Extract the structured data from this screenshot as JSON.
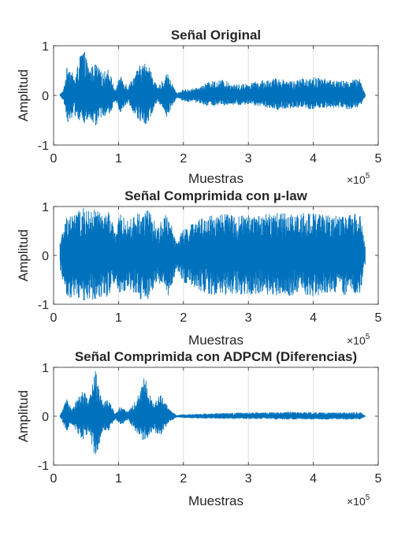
{
  "accent_color": "#0072bd",
  "chart_data": [
    {
      "type": "line",
      "title": "Señal Original",
      "xlabel": "Muestras",
      "ylabel": "Amplitud",
      "x_multiplier": "×10",
      "x_exponent": "5",
      "xlim": [
        0,
        5
      ],
      "ylim": [
        -1,
        1
      ],
      "xticks": [
        "0",
        "1",
        "2",
        "3",
        "4",
        "5"
      ],
      "yticks": [
        "-1",
        "0",
        "1"
      ],
      "grid": "vertical",
      "legend": "none",
      "series": [
        {
          "color": "#0072bd",
          "x_range": [
            0.1,
            4.8
          ],
          "envelope": [
            {
              "x": 0.1,
              "upper": 0.03,
              "lower": -0.03
            },
            {
              "x": 0.15,
              "upper": 0.1,
              "lower": -0.1
            },
            {
              "x": 0.22,
              "upper": 0.7,
              "lower": -0.55
            },
            {
              "x": 0.32,
              "upper": 0.35,
              "lower": -0.4
            },
            {
              "x": 0.45,
              "upper": 1.0,
              "lower": -0.6
            },
            {
              "x": 0.55,
              "upper": 0.55,
              "lower": -0.5
            },
            {
              "x": 0.65,
              "upper": 0.65,
              "lower": -0.65
            },
            {
              "x": 0.75,
              "upper": 0.45,
              "lower": -0.4
            },
            {
              "x": 0.85,
              "upper": 0.55,
              "lower": -0.45
            },
            {
              "x": 0.95,
              "upper": 0.1,
              "lower": -0.1
            },
            {
              "x": 1.02,
              "upper": 0.4,
              "lower": -0.35
            },
            {
              "x": 1.15,
              "upper": 0.2,
              "lower": -0.15
            },
            {
              "x": 1.32,
              "upper": 0.6,
              "lower": -0.55
            },
            {
              "x": 1.45,
              "upper": 0.7,
              "lower": -0.6
            },
            {
              "x": 1.6,
              "upper": 0.15,
              "lower": -0.1
            },
            {
              "x": 1.75,
              "upper": 0.45,
              "lower": -0.45
            },
            {
              "x": 1.9,
              "upper": 0.05,
              "lower": -0.05
            },
            {
              "x": 2.0,
              "upper": 0.12,
              "lower": -0.12
            },
            {
              "x": 2.2,
              "upper": 0.15,
              "lower": -0.15
            },
            {
              "x": 2.4,
              "upper": 0.28,
              "lower": -0.22
            },
            {
              "x": 2.6,
              "upper": 0.32,
              "lower": -0.22
            },
            {
              "x": 2.8,
              "upper": 0.22,
              "lower": -0.2
            },
            {
              "x": 3.0,
              "upper": 0.25,
              "lower": -0.2
            },
            {
              "x": 3.2,
              "upper": 0.3,
              "lower": -0.22
            },
            {
              "x": 3.45,
              "upper": 0.35,
              "lower": -0.3
            },
            {
              "x": 3.7,
              "upper": 0.3,
              "lower": -0.25
            },
            {
              "x": 3.95,
              "upper": 0.38,
              "lower": -0.3
            },
            {
              "x": 4.15,
              "upper": 0.35,
              "lower": -0.25
            },
            {
              "x": 4.35,
              "upper": 0.3,
              "lower": -0.25
            },
            {
              "x": 4.55,
              "upper": 0.3,
              "lower": -0.3
            },
            {
              "x": 4.72,
              "upper": 0.35,
              "lower": -0.25
            },
            {
              "x": 4.8,
              "upper": 0.02,
              "lower": -0.02
            }
          ]
        }
      ]
    },
    {
      "type": "line",
      "title": "Señal Comprimida con µ-law",
      "xlabel": "Muestras",
      "ylabel": "Amplitud",
      "x_multiplier": "×10",
      "x_exponent": "5",
      "xlim": [
        0,
        5
      ],
      "ylim": [
        -1,
        1
      ],
      "xticks": [
        "0",
        "1",
        "2",
        "3",
        "4",
        "5"
      ],
      "yticks": [
        "-1",
        "0",
        "1"
      ],
      "grid": "vertical",
      "legend": "none",
      "series": [
        {
          "color": "#0072bd",
          "x_range": [
            0.1,
            4.8
          ],
          "envelope": [
            {
              "x": 0.1,
              "upper": 0.3,
              "lower": -0.3
            },
            {
              "x": 0.15,
              "upper": 0.55,
              "lower": -0.55
            },
            {
              "x": 0.22,
              "upper": 0.92,
              "lower": -0.9
            },
            {
              "x": 0.32,
              "upper": 0.85,
              "lower": -0.85
            },
            {
              "x": 0.45,
              "upper": 0.98,
              "lower": -0.95
            },
            {
              "x": 0.55,
              "upper": 0.9,
              "lower": -0.9
            },
            {
              "x": 0.65,
              "upper": 0.95,
              "lower": -0.93
            },
            {
              "x": 0.75,
              "upper": 0.85,
              "lower": -0.85
            },
            {
              "x": 0.85,
              "upper": 0.9,
              "lower": -0.9
            },
            {
              "x": 0.95,
              "upper": 0.5,
              "lower": -0.5
            },
            {
              "x": 1.02,
              "upper": 0.85,
              "lower": -0.85
            },
            {
              "x": 1.15,
              "upper": 0.7,
              "lower": -0.65
            },
            {
              "x": 1.32,
              "upper": 0.92,
              "lower": -0.9
            },
            {
              "x": 1.45,
              "upper": 0.95,
              "lower": -0.92
            },
            {
              "x": 1.6,
              "upper": 0.6,
              "lower": -0.55
            },
            {
              "x": 1.75,
              "upper": 0.88,
              "lower": -0.88
            },
            {
              "x": 1.9,
              "upper": 0.3,
              "lower": -0.3
            },
            {
              "x": 2.0,
              "upper": 0.55,
              "lower": -0.55
            },
            {
              "x": 2.2,
              "upper": 0.7,
              "lower": -0.7
            },
            {
              "x": 2.4,
              "upper": 0.85,
              "lower": -0.8
            },
            {
              "x": 2.6,
              "upper": 0.85,
              "lower": -0.82
            },
            {
              "x": 2.8,
              "upper": 0.82,
              "lower": -0.8
            },
            {
              "x": 3.0,
              "upper": 0.82,
              "lower": -0.8
            },
            {
              "x": 3.2,
              "upper": 0.85,
              "lower": -0.82
            },
            {
              "x": 3.45,
              "upper": 0.88,
              "lower": -0.85
            },
            {
              "x": 3.7,
              "upper": 0.85,
              "lower": -0.82
            },
            {
              "x": 3.95,
              "upper": 0.88,
              "lower": -0.85
            },
            {
              "x": 4.15,
              "upper": 0.85,
              "lower": -0.82
            },
            {
              "x": 4.35,
              "upper": 0.82,
              "lower": -0.8
            },
            {
              "x": 4.55,
              "upper": 0.82,
              "lower": -0.82
            },
            {
              "x": 4.72,
              "upper": 0.88,
              "lower": -0.8
            },
            {
              "x": 4.8,
              "upper": 0.2,
              "lower": -0.2
            }
          ]
        }
      ]
    },
    {
      "type": "line",
      "title": "Señal Comprimida con ADPCM (Diferencias)",
      "xlabel": "Muestras",
      "ylabel": "Amplitud",
      "x_multiplier": "×10",
      "x_exponent": "5",
      "xlim": [
        0,
        5
      ],
      "ylim": [
        -1,
        1
      ],
      "xticks": [
        "0",
        "1",
        "2",
        "3",
        "4",
        "5"
      ],
      "yticks": [
        "-1",
        "0",
        "1"
      ],
      "grid": "vertical",
      "legend": "none",
      "series": [
        {
          "color": "#0072bd",
          "x_range": [
            0.1,
            4.8
          ],
          "envelope": [
            {
              "x": 0.1,
              "upper": 0.02,
              "lower": -0.02
            },
            {
              "x": 0.2,
              "upper": 0.35,
              "lower": -0.3
            },
            {
              "x": 0.3,
              "upper": 0.2,
              "lower": -0.2
            },
            {
              "x": 0.45,
              "upper": 0.55,
              "lower": -0.5
            },
            {
              "x": 0.55,
              "upper": 0.35,
              "lower": -0.35
            },
            {
              "x": 0.65,
              "upper": 1.0,
              "lower": -0.95
            },
            {
              "x": 0.75,
              "upper": 0.35,
              "lower": -0.3
            },
            {
              "x": 0.85,
              "upper": 0.35,
              "lower": -0.3
            },
            {
              "x": 0.95,
              "upper": 0.05,
              "lower": -0.05
            },
            {
              "x": 1.02,
              "upper": 0.2,
              "lower": -0.2
            },
            {
              "x": 1.15,
              "upper": 0.1,
              "lower": -0.08
            },
            {
              "x": 1.28,
              "upper": 0.35,
              "lower": -0.35
            },
            {
              "x": 1.4,
              "upper": 0.85,
              "lower": -0.55
            },
            {
              "x": 1.52,
              "upper": 0.3,
              "lower": -0.3
            },
            {
              "x": 1.65,
              "upper": 0.45,
              "lower": -0.4
            },
            {
              "x": 1.78,
              "upper": 0.15,
              "lower": -0.12
            },
            {
              "x": 1.9,
              "upper": 0.02,
              "lower": -0.02
            },
            {
              "x": 2.0,
              "upper": 0.04,
              "lower": -0.04
            },
            {
              "x": 2.4,
              "upper": 0.06,
              "lower": -0.05
            },
            {
              "x": 2.8,
              "upper": 0.07,
              "lower": -0.06
            },
            {
              "x": 3.2,
              "upper": 0.08,
              "lower": -0.06
            },
            {
              "x": 3.6,
              "upper": 0.09,
              "lower": -0.07
            },
            {
              "x": 4.0,
              "upper": 0.08,
              "lower": -0.07
            },
            {
              "x": 4.4,
              "upper": 0.08,
              "lower": -0.07
            },
            {
              "x": 4.72,
              "upper": 0.09,
              "lower": -0.07
            },
            {
              "x": 4.8,
              "upper": 0.01,
              "lower": -0.01
            }
          ]
        }
      ]
    }
  ]
}
